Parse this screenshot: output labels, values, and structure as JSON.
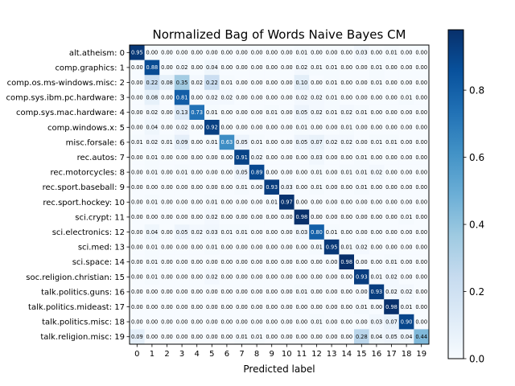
{
  "chart_data": {
    "type": "heatmap",
    "title": "Normalized Bag of Words Naive Bayes CM",
    "xlabel": "Predicted label",
    "ylabel": "",
    "row_labels": [
      "alt.atheism: 0",
      "comp.graphics: 1",
      "comp.os.ms-windows.misc: 2",
      "comp.sys.ibm.pc.hardware: 3",
      "comp.sys.mac.hardware: 4",
      "comp.windows.x: 5",
      "misc.forsale: 6",
      "rec.autos: 7",
      "rec.motorcycles: 8",
      "rec.sport.baseball: 9",
      "rec.sport.hockey: 10",
      "sci.crypt: 11",
      "sci.electronics: 12",
      "sci.med: 13",
      "sci.space: 14",
      "soc.religion.christian: 15",
      "talk.politics.guns: 16",
      "talk.politics.mideast: 17",
      "talk.politics.misc: 18",
      "talk.religion.misc: 19"
    ],
    "col_labels": [
      "0",
      "1",
      "2",
      "3",
      "4",
      "5",
      "6",
      "7",
      "8",
      "9",
      "10",
      "11",
      "12",
      "13",
      "14",
      "15",
      "16",
      "17",
      "18",
      "19"
    ],
    "colorbar": {
      "min": 0.0,
      "max": 0.98,
      "ticks": [
        "0.0",
        "0.2",
        "0.4",
        "0.6",
        "0.8"
      ],
      "tick_values": [
        0,
        0.2,
        0.4,
        0.6,
        0.8
      ],
      "colormap": "Blues"
    },
    "matrix": [
      [
        0.95,
        0.0,
        0.0,
        0.0,
        0.0,
        0.0,
        0.0,
        0.0,
        0.0,
        0.0,
        0.0,
        0.01,
        0.0,
        0.0,
        0.0,
        0.03,
        0.0,
        0.01,
        0.0,
        0.0
      ],
      [
        0.0,
        0.88,
        0.0,
        0.02,
        0.0,
        0.04,
        0.0,
        0.0,
        0.0,
        0.0,
        0.0,
        0.02,
        0.01,
        0.01,
        0.0,
        0.0,
        0.01,
        0.0,
        0.0,
        0.0
      ],
      [
        0.0,
        0.22,
        0.08,
        0.35,
        0.02,
        0.22,
        0.01,
        0.0,
        0.0,
        0.0,
        0.0,
        0.1,
        0.0,
        0.01,
        0.0,
        0.0,
        0.01,
        0.0,
        0.0,
        0.0
      ],
      [
        0.0,
        0.08,
        0.0,
        0.81,
        0.0,
        0.02,
        0.02,
        0.0,
        0.0,
        0.0,
        0.0,
        0.02,
        0.02,
        0.01,
        0.0,
        0.0,
        0.0,
        0.0,
        0.01,
        0.0
      ],
      [
        0.0,
        0.02,
        0.0,
        0.13,
        0.73,
        0.01,
        0.0,
        0.0,
        0.0,
        0.01,
        0.0,
        0.05,
        0.02,
        0.01,
        0.02,
        0.01,
        0.0,
        0.0,
        0.0,
        0.0
      ],
      [
        0.0,
        0.04,
        0.0,
        0.02,
        0.0,
        0.92,
        0.0,
        0.0,
        0.0,
        0.0,
        0.0,
        0.01,
        0.0,
        0.0,
        0.01,
        0.0,
        0.0,
        0.0,
        0.0,
        0.0
      ],
      [
        0.01,
        0.02,
        0.01,
        0.09,
        0.0,
        0.01,
        0.63,
        0.05,
        0.01,
        0.0,
        0.0,
        0.05,
        0.07,
        0.02,
        0.02,
        0.0,
        0.01,
        0.01,
        0.0,
        0.0
      ],
      [
        0.0,
        0.01,
        0.0,
        0.0,
        0.0,
        0.0,
        0.0,
        0.91,
        0.02,
        0.0,
        0.0,
        0.0,
        0.03,
        0.0,
        0.0,
        0.01,
        0.0,
        0.0,
        0.0,
        0.0
      ],
      [
        0.0,
        0.01,
        0.0,
        0.01,
        0.0,
        0.0,
        0.0,
        0.05,
        0.89,
        0.0,
        0.0,
        0.0,
        0.01,
        0.0,
        0.01,
        0.01,
        0.02,
        0.0,
        0.0,
        0.0
      ],
      [
        0.0,
        0.0,
        0.0,
        0.0,
        0.0,
        0.0,
        0.0,
        0.01,
        0.0,
        0.93,
        0.03,
        0.0,
        0.01,
        0.0,
        0.0,
        0.01,
        0.0,
        0.0,
        0.0,
        0.0
      ],
      [
        0.0,
        0.01,
        0.0,
        0.0,
        0.0,
        0.01,
        0.0,
        0.0,
        0.0,
        0.01,
        0.97,
        0.0,
        0.0,
        0.0,
        0.0,
        0.0,
        0.0,
        0.0,
        0.0,
        0.0
      ],
      [
        0.0,
        0.0,
        0.0,
        0.0,
        0.0,
        0.02,
        0.0,
        0.0,
        0.0,
        0.0,
        0.0,
        0.98,
        0.0,
        0.0,
        0.0,
        0.0,
        0.0,
        0.0,
        0.01,
        0.0
      ],
      [
        0.0,
        0.04,
        0.0,
        0.05,
        0.02,
        0.03,
        0.01,
        0.01,
        0.0,
        0.0,
        0.0,
        0.03,
        0.8,
        0.01,
        0.0,
        0.0,
        0.0,
        0.0,
        0.0,
        0.0
      ],
      [
        0.0,
        0.01,
        0.0,
        0.0,
        0.0,
        0.01,
        0.0,
        0.0,
        0.0,
        0.0,
        0.0,
        0.0,
        0.01,
        0.95,
        0.01,
        0.02,
        0.0,
        0.0,
        0.0,
        0.0
      ],
      [
        0.0,
        0.01,
        0.0,
        0.0,
        0.0,
        0.0,
        0.0,
        0.0,
        0.0,
        0.0,
        0.0,
        0.0,
        0.0,
        0.0,
        0.98,
        0.0,
        0.0,
        0.01,
        0.0,
        0.0
      ],
      [
        0.0,
        0.01,
        0.0,
        0.0,
        0.0,
        0.02,
        0.0,
        0.0,
        0.0,
        0.0,
        0.0,
        0.0,
        0.0,
        0.0,
        0.0,
        0.93,
        0.01,
        0.02,
        0.0,
        0.0
      ],
      [
        0.0,
        0.0,
        0.0,
        0.0,
        0.0,
        0.0,
        0.0,
        0.0,
        0.0,
        0.0,
        0.0,
        0.01,
        0.0,
        0.0,
        0.0,
        0.0,
        0.93,
        0.02,
        0.02,
        0.0
      ],
      [
        0.0,
        0.0,
        0.0,
        0.0,
        0.0,
        0.0,
        0.0,
        0.0,
        0.0,
        0.0,
        0.0,
        0.0,
        0.0,
        0.0,
        0.0,
        0.01,
        0.0,
        0.98,
        0.01,
        0.0
      ],
      [
        0.0,
        0.0,
        0.0,
        0.0,
        0.0,
        0.0,
        0.0,
        0.0,
        0.0,
        0.0,
        0.0,
        0.0,
        0.01,
        0.0,
        0.0,
        0.0,
        0.03,
        0.07,
        0.9,
        0.0
      ],
      [
        0.09,
        0.0,
        0.0,
        0.0,
        0.0,
        0.0,
        0.0,
        0.01,
        0.01,
        0.0,
        0.0,
        0.0,
        0.0,
        0.0,
        0.0,
        0.28,
        0.04,
        0.05,
        0.04,
        0.44
      ]
    ]
  }
}
